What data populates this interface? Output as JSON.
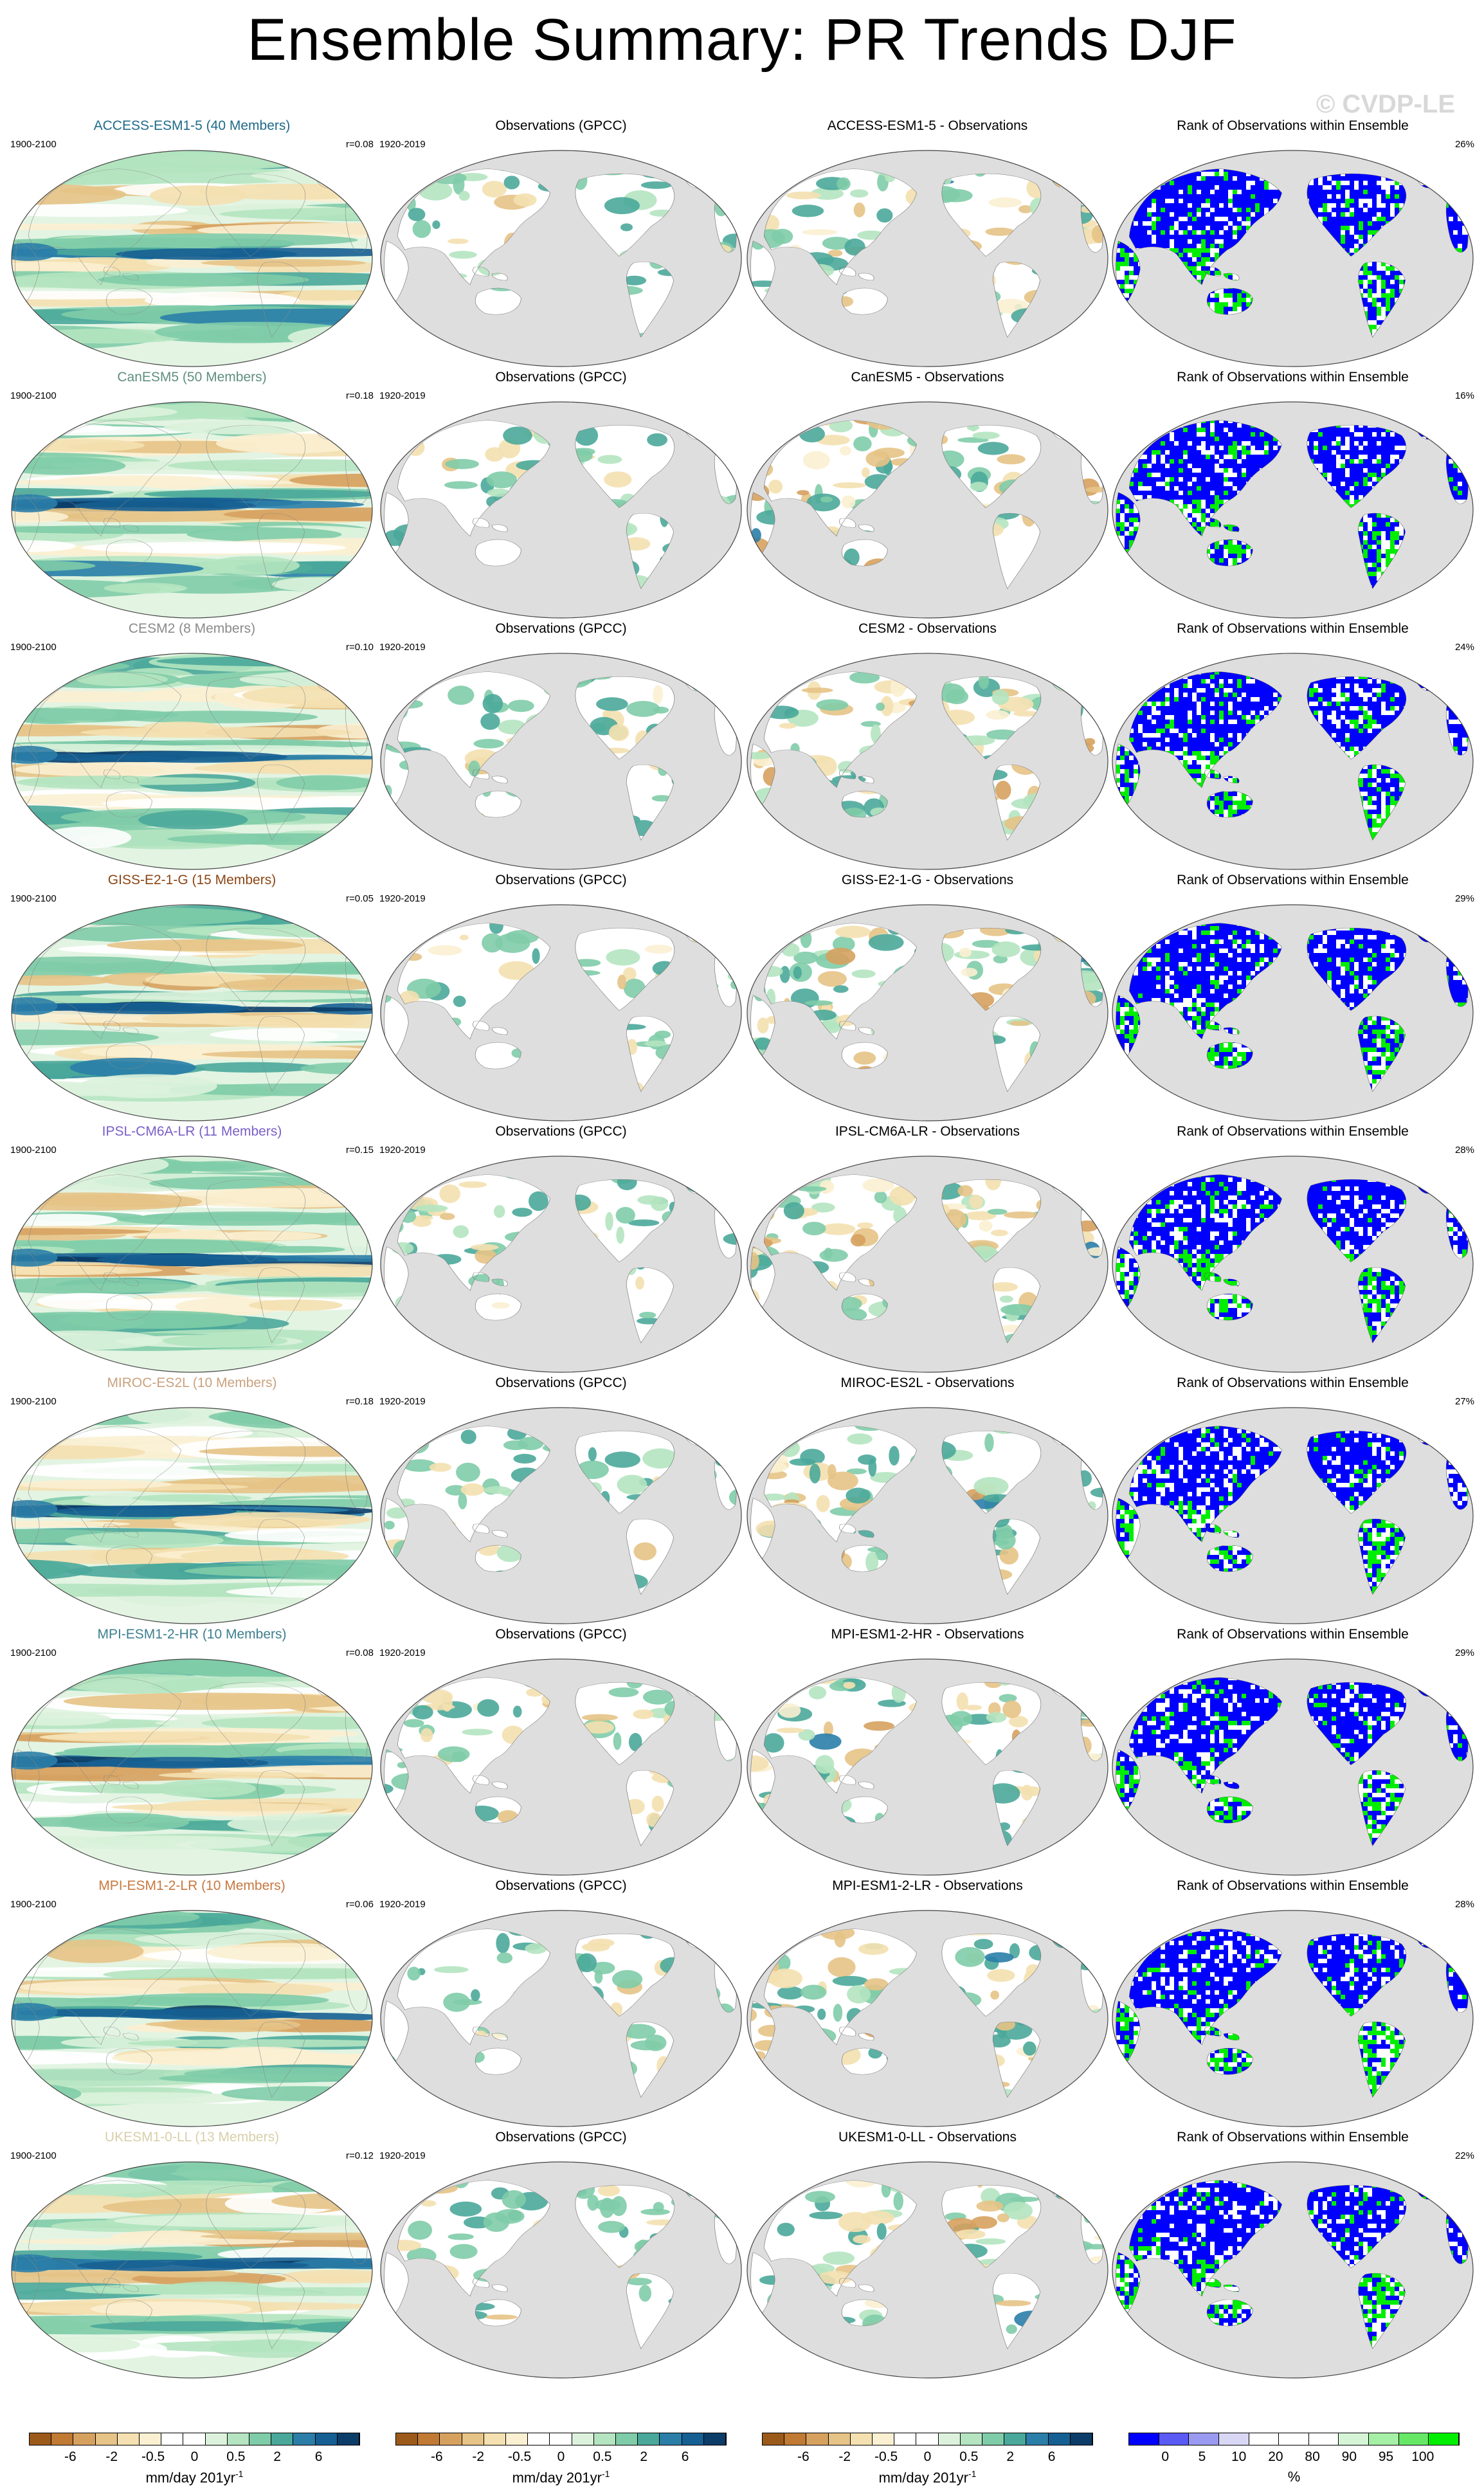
{
  "page": {
    "title": "Ensemble Summary: PR Trends DJF",
    "watermark": "© CVDP-LE"
  },
  "rows": [
    {
      "model": "ACCESS-ESM1-5 (40 Members)",
      "title_color": "#1f6a8a",
      "r": "r=0.08",
      "obs_title": "ACCESS-ESM1-5 - Observations",
      "pct": "26%"
    },
    {
      "model": "CanESM5 (50 Members)",
      "title_color": "#5f8f7e",
      "r": "r=0.18",
      "obs_title": "CanESM5 - Observations",
      "pct": "16%"
    },
    {
      "model": "CESM2 (8 Members)",
      "title_color": "#8a8a8a",
      "r": "r=0.10",
      "obs_title": "CESM2 - Observations",
      "pct": "24%"
    },
    {
      "model": "GISS-E2-1-G (15 Members)",
      "title_color": "#8b4513",
      "r": "r=0.05",
      "obs_title": "GISS-E2-1-G - Observations",
      "pct": "29%"
    },
    {
      "model": "IPSL-CM6A-LR (11 Members)",
      "title_color": "#7a5fc8",
      "r": "r=0.15",
      "obs_title": "IPSL-CM6A-LR - Observations",
      "pct": "28%"
    },
    {
      "model": "MIROC-ES2L (10 Members)",
      "title_color": "#c9a27e",
      "r": "r=0.18",
      "obs_title": "MIROC-ES2L - Observations",
      "pct": "27%"
    },
    {
      "model": "MPI-ESM1-2-HR (10 Members)",
      "title_color": "#3d7f8f",
      "r": "r=0.08",
      "obs_title": "MPI-ESM1-2-HR - Observations",
      "pct": "29%"
    },
    {
      "model": "MPI-ESM1-2-LR (10 Members)",
      "title_color": "#c8783e",
      "r": "r=0.06",
      "obs_title": "MPI-ESM1-2-LR - Observations",
      "pct": "28%"
    },
    {
      "model": "UKESM1-0-LL (13 Members)",
      "title_color": "#d8cfa8",
      "r": "r=0.12",
      "obs_title": "UKESM1-0-LL - Observations",
      "pct": "22%"
    }
  ],
  "labels": {
    "model_period": "1900-2100",
    "obs_period": "1920-2019",
    "obs_panel_title": "Observations (GPCC)",
    "rank_panel_title": "Rank of Observations within Ensemble"
  },
  "colorbars": {
    "trend_ticks": [
      "-6",
      "-2",
      "-0.5",
      "0",
      "0.5",
      "2",
      "6"
    ],
    "trend_colors": [
      "#9c5a1a",
      "#c07a33",
      "#d6a15f",
      "#e6c386",
      "#f4e0b0",
      "#fbf0d2",
      "#ffffff",
      "#ffffff",
      "#dcf2dc",
      "#b4e4c0",
      "#7fcca8",
      "#4aa89a",
      "#2a7ea8",
      "#165f92",
      "#0b3d68"
    ],
    "trend_unit_main": "mm/day 201yr",
    "trend_unit_sup": "-1",
    "rank_ticks": [
      "0",
      "5",
      "10",
      "20",
      "80",
      "90",
      "95",
      "100"
    ],
    "rank_colors": [
      "#0000ff",
      "#5a5af5",
      "#9a9af0",
      "#d8d8f5",
      "#ffffff",
      "#ffffff",
      "#ffffff",
      "#d6f5d6",
      "#a6efa6",
      "#66e866",
      "#00ee00"
    ],
    "rank_unit": "%"
  }
}
